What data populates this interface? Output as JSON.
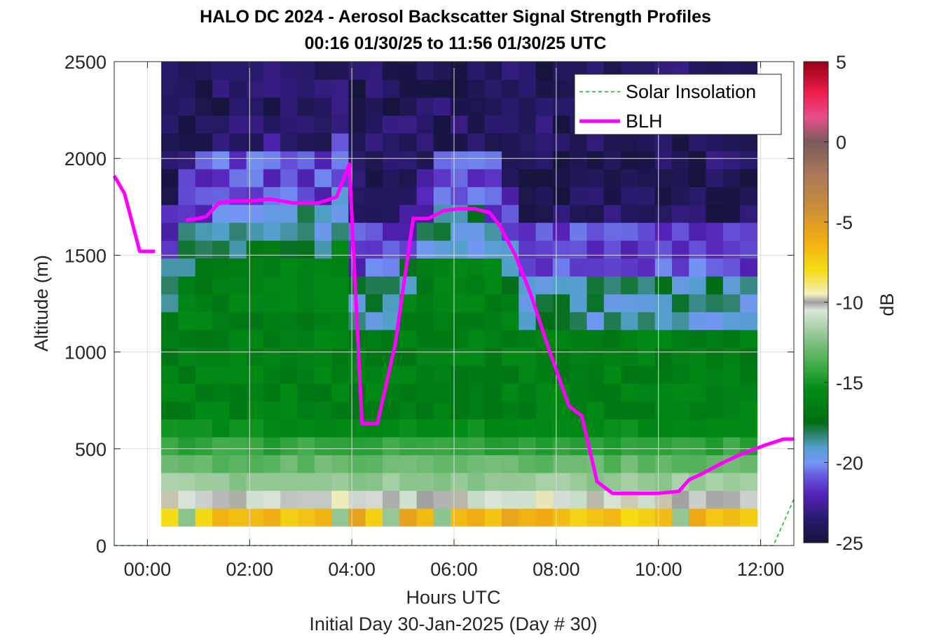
{
  "chart_data": {
    "type": "heatmap",
    "title": "HALO DC 2024 - Aerosol Backscatter Signal Strength Profiles",
    "subtitle": "00:16 01/30/25 to 11:56 01/30/25  UTC",
    "xlabel": "Hours UTC",
    "footnote": "Initial Day 30-Jan-2025 (Day # 30)",
    "ylabel": "Altitude (m)",
    "colorbar_label": "dB",
    "xlim": [
      -0.65,
      12.65
    ],
    "ylim": [
      0,
      2500
    ],
    "x_ticks": [
      0,
      2,
      4,
      6,
      8,
      10,
      12
    ],
    "x_tick_labels": [
      "00:00",
      "02:00",
      "04:00",
      "06:00",
      "08:00",
      "10:00",
      "12:00"
    ],
    "y_ticks": [
      0,
      500,
      1000,
      1500,
      2000,
      2500
    ],
    "y_tick_labels": [
      "0",
      "500",
      "1000",
      "1500",
      "2000",
      "2500"
    ],
    "clim": [
      -25,
      5
    ],
    "colorbar_ticks": [
      5,
      0,
      -5,
      -10,
      -15,
      -20,
      -25
    ],
    "colorbar_tick_labels": [
      "5",
      "0",
      "-5",
      "-10",
      "-15",
      "-20",
      "-25"
    ],
    "grid": true,
    "legend_position": "top-right",
    "legend": [
      {
        "label": "Solar Insolation",
        "color": "#00c800",
        "style": "dashed"
      },
      {
        "label": "BLH",
        "color": "#ff00ff",
        "style": "solid"
      }
    ],
    "heatmap": {
      "x_start_hours": 0.27,
      "x_end_hours": 11.93,
      "columns": 35,
      "rows": 26,
      "altitude_start_m": 100,
      "altitude_end_m": 2500,
      "backscatter_db_profile_by_band": [
        {
          "altitude_m": [
            100,
            150
          ],
          "db": -7
        },
        {
          "altitude_m": [
            150,
            250
          ],
          "db": -9
        },
        {
          "altitude_m": [
            250,
            600
          ],
          "db": -12
        },
        {
          "altitude_m": [
            600,
            1100
          ],
          "db": -16
        },
        {
          "altitude_m": [
            1100,
            1700
          ],
          "db": -18
        },
        {
          "altitude_m": [
            1700,
            2500
          ],
          "db": -23
        }
      ]
    },
    "series": [
      {
        "name": "BLH",
        "x": [
          -0.65,
          -0.45,
          -0.15,
          0.15,
          0.5,
          0.75,
          1.0,
          1.15,
          1.4,
          1.65,
          2.0,
          2.4,
          2.85,
          3.35,
          3.7,
          3.95,
          4.2,
          4.5,
          4.85,
          5.2,
          5.5,
          5.8,
          6.1,
          6.4,
          6.7,
          6.9,
          7.2,
          7.5,
          7.85,
          8.25,
          8.5,
          8.8,
          9.1,
          9.5,
          10.0,
          10.4,
          10.6,
          10.85,
          11.2,
          11.6,
          12.1,
          12.45,
          12.65
        ],
        "y": [
          1910,
          1820,
          1520,
          1520,
          null,
          1680,
          1690,
          1700,
          1770,
          1780,
          1780,
          1790,
          1770,
          1770,
          1800,
          1970,
          630,
          630,
          1040,
          1690,
          1690,
          1730,
          1740,
          1740,
          1720,
          1650,
          1500,
          1300,
          1020,
          720,
          670,
          330,
          270,
          270,
          270,
          280,
          340,
          370,
          420,
          470,
          520,
          550,
          550
        ]
      },
      {
        "name": "Solar Insolation",
        "x": [
          -0.65,
          12.25,
          12.65
        ],
        "y": [
          0,
          0,
          240
        ]
      }
    ]
  }
}
